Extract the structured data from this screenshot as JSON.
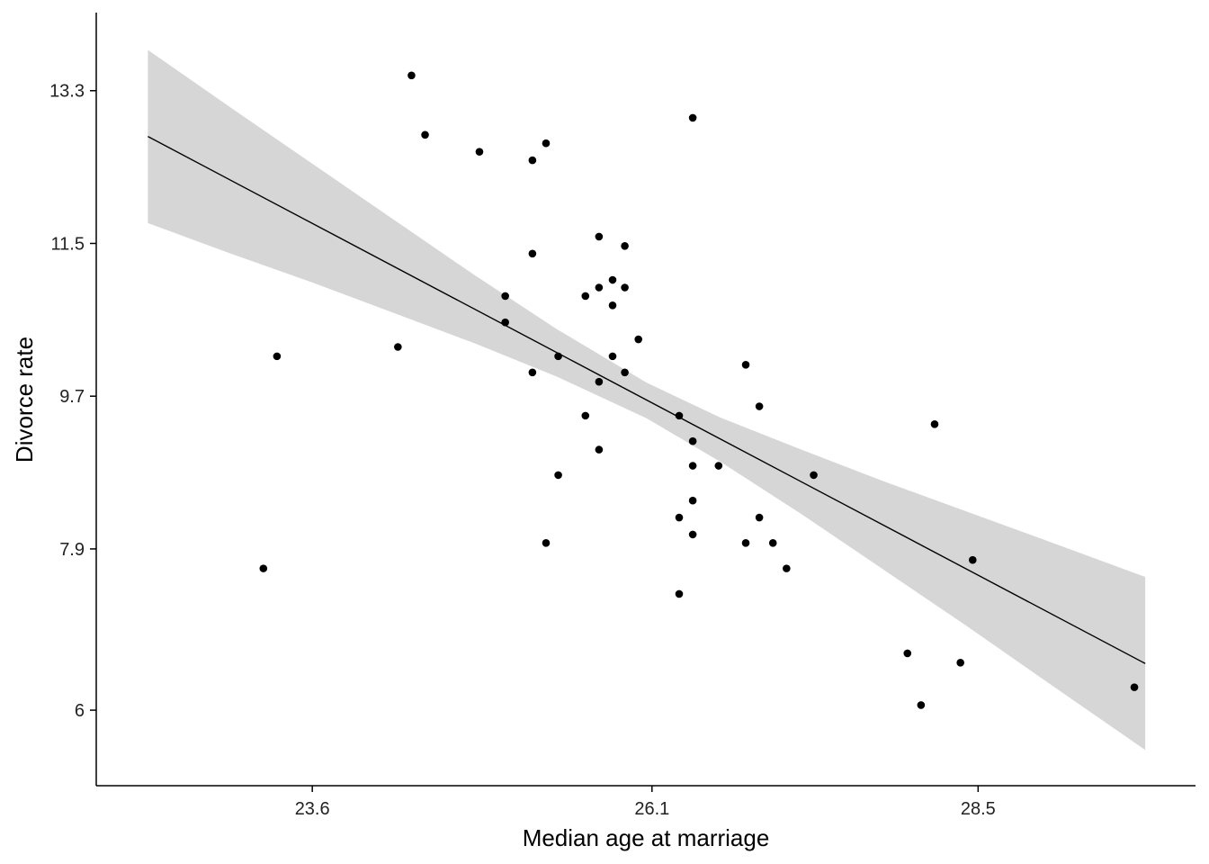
{
  "chart_data": {
    "type": "scatter",
    "title": "",
    "xlabel": "Median age at marriage",
    "ylabel": "Divorce rate",
    "xlim": [
      22.01,
      30.1
    ],
    "ylim": [
      5.11,
      14.22
    ],
    "grid": false,
    "xticks": [
      {
        "value": 23.6,
        "label": "23.6"
      },
      {
        "value": 26.1,
        "label": "26.1"
      },
      {
        "value": 28.5,
        "label": "28.5"
      }
    ],
    "yticks": [
      {
        "value": 6.0,
        "label": "6"
      },
      {
        "value": 7.9,
        "label": "7.9"
      },
      {
        "value": 9.7,
        "label": "9.7"
      },
      {
        "value": 11.5,
        "label": "11.5"
      },
      {
        "value": 13.3,
        "label": "13.3"
      }
    ],
    "points": [
      [
        24.33,
        13.48
      ],
      [
        24.43,
        12.78
      ],
      [
        24.83,
        12.58
      ],
      [
        25.22,
        12.48
      ],
      [
        25.32,
        12.68
      ],
      [
        26.4,
        12.98
      ],
      [
        25.71,
        11.58
      ],
      [
        25.9,
        11.47
      ],
      [
        25.22,
        11.38
      ],
      [
        25.02,
        10.88
      ],
      [
        25.61,
        10.88
      ],
      [
        25.71,
        10.98
      ],
      [
        25.81,
        11.07
      ],
      [
        25.9,
        10.98
      ],
      [
        25.81,
        10.77
      ],
      [
        25.02,
        10.57
      ],
      [
        26.0,
        10.37
      ],
      [
        24.23,
        10.28
      ],
      [
        23.34,
        10.17
      ],
      [
        25.41,
        10.17
      ],
      [
        25.81,
        10.17
      ],
      [
        25.22,
        9.98
      ],
      [
        25.9,
        9.98
      ],
      [
        25.71,
        9.87
      ],
      [
        26.79,
        10.07
      ],
      [
        26.89,
        9.58
      ],
      [
        25.61,
        9.47
      ],
      [
        26.3,
        9.47
      ],
      [
        28.18,
        9.37
      ],
      [
        26.4,
        9.17
      ],
      [
        25.71,
        9.07
      ],
      [
        26.4,
        8.88
      ],
      [
        26.59,
        8.88
      ],
      [
        25.41,
        8.77
      ],
      [
        27.29,
        8.77
      ],
      [
        26.4,
        8.47
      ],
      [
        26.3,
        8.27
      ],
      [
        26.89,
        8.27
      ],
      [
        26.4,
        8.07
      ],
      [
        25.32,
        7.97
      ],
      [
        26.79,
        7.97
      ],
      [
        26.99,
        7.97
      ],
      [
        23.24,
        7.67
      ],
      [
        27.09,
        7.67
      ],
      [
        28.46,
        7.77
      ],
      [
        26.3,
        7.37
      ],
      [
        27.98,
        6.67
      ],
      [
        28.37,
        6.56
      ],
      [
        28.08,
        6.06
      ],
      [
        29.65,
        6.27
      ]
    ],
    "fit_line": [
      [
        22.39,
        12.76
      ],
      [
        29.73,
        6.55
      ]
    ],
    "confidence_band": [
      [
        22.39,
        11.74,
        13.78
      ],
      [
        23.0,
        11.38,
        13.1
      ],
      [
        23.6,
        11.04,
        12.44
      ],
      [
        24.2,
        10.68,
        11.78
      ],
      [
        24.8,
        10.32,
        11.12
      ],
      [
        25.4,
        9.93,
        10.49
      ],
      [
        26.06,
        9.44,
        9.86
      ],
      [
        26.6,
        8.93,
        9.45
      ],
      [
        27.2,
        8.31,
        9.07
      ],
      [
        27.8,
        7.66,
        8.7
      ],
      [
        28.4,
        7.01,
        8.35
      ],
      [
        29.0,
        6.34,
        8.0
      ],
      [
        29.73,
        5.53,
        7.57
      ]
    ],
    "colors": {
      "points": "#000000",
      "line": "#000000",
      "band": "#d6d6d6"
    }
  }
}
